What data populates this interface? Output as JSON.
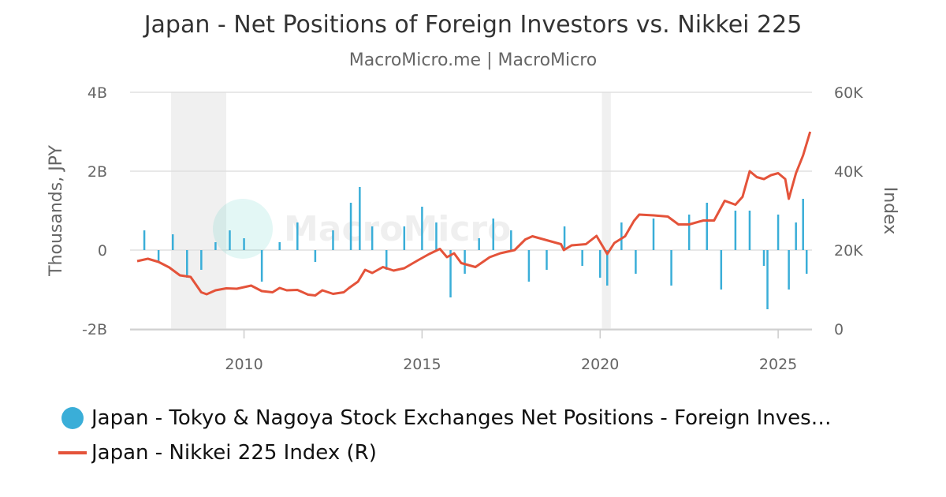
{
  "chart_data": {
    "type": "bar+line",
    "title": "Japan - Net Positions of Foreign Investors vs. Nikkei 225",
    "subtitle": "MacroMicro.me | MacroMicro",
    "watermark": "MacroMicro",
    "x_ticks": [
      "2010",
      "2015",
      "2020",
      "2025"
    ],
    "x_tick_values": [
      2010,
      2015,
      2020,
      2025
    ],
    "xlim": [
      2006.8,
      2025.95
    ],
    "y_left": {
      "label": "Thousands, JPY",
      "ticks": [
        "4B",
        "2B",
        "0",
        "-2B"
      ],
      "tick_values": [
        4000000000,
        2000000000,
        0,
        -2000000000
      ],
      "range": [
        -2000000000,
        4000000000
      ]
    },
    "y_right": {
      "label": "Index",
      "ticks": [
        "60K",
        "40K",
        "20K",
        "0"
      ],
      "tick_values": [
        60000,
        40000,
        20000,
        0
      ],
      "range": [
        0,
        60000
      ]
    },
    "recessions": [
      [
        2007.95,
        2009.5
      ],
      [
        2020.05,
        2020.3
      ]
    ],
    "series": [
      {
        "name": "Japan - Tokyo & Nagoya Stock Exchanges Net Positions - Foreign Investors",
        "legend_label": "Japan - Tokyo & Nagoya Stock Exchanges Net Positions - Foreign Inves…",
        "type": "bar",
        "axis": "left",
        "color": "#3aaed8",
        "note": "weekly bars; values in JPY",
        "x": [
          2007.2,
          2007.6,
          2008.0,
          2008.4,
          2008.8,
          2009.2,
          2009.6,
          2010.0,
          2010.5,
          2011.0,
          2011.5,
          2012.0,
          2012.5,
          2013.0,
          2013.25,
          2013.6,
          2014.0,
          2014.5,
          2015.0,
          2015.4,
          2015.8,
          2016.2,
          2016.6,
          2017.0,
          2017.5,
          2018.0,
          2018.5,
          2019.0,
          2019.5,
          2020.0,
          2020.2,
          2020.6,
          2021.0,
          2021.5,
          2022.0,
          2022.5,
          2023.0,
          2023.4,
          2023.8,
          2024.2,
          2024.6,
          2024.7,
          2025.0,
          2025.3,
          2025.5,
          2025.7,
          2025.8
        ],
        "values": [
          500000000,
          -300000000,
          400000000,
          -700000000,
          -500000000,
          200000000,
          500000000,
          300000000,
          -800000000,
          200000000,
          700000000,
          -300000000,
          500000000,
          1200000000,
          1600000000,
          600000000,
          -500000000,
          600000000,
          1100000000,
          700000000,
          -1200000000,
          -600000000,
          300000000,
          800000000,
          500000000,
          -800000000,
          -500000000,
          600000000,
          -400000000,
          -700000000,
          -900000000,
          700000000,
          -600000000,
          800000000,
          -900000000,
          900000000,
          1200000000,
          -1000000000,
          1000000000,
          1000000000,
          -400000000,
          -1500000000,
          900000000,
          -1000000000,
          700000000,
          1300000000,
          -600000000
        ]
      },
      {
        "name": "Japan - Nikkei 225 Index (R)",
        "type": "line",
        "axis": "right",
        "color": "#e4533a",
        "x": [
          2007.0,
          2007.3,
          2007.6,
          2007.9,
          2008.2,
          2008.5,
          2008.8,
          2008.95,
          2009.2,
          2009.5,
          2009.8,
          2010.2,
          2010.5,
          2010.8,
          2011.0,
          2011.2,
          2011.5,
          2011.8,
          2012.0,
          2012.2,
          2012.5,
          2012.8,
          2012.95,
          2013.2,
          2013.4,
          2013.6,
          2013.9,
          2014.2,
          2014.5,
          2014.9,
          2015.2,
          2015.5,
          2015.7,
          2015.9,
          2016.1,
          2016.5,
          2016.9,
          2017.2,
          2017.6,
          2017.9,
          2018.1,
          2018.5,
          2018.9,
          2018.98,
          2019.2,
          2019.6,
          2019.9,
          2020.2,
          2020.4,
          2020.7,
          2020.95,
          2021.1,
          2021.5,
          2021.9,
          2022.2,
          2022.5,
          2022.9,
          2023.2,
          2023.5,
          2023.8,
          2024.0,
          2024.2,
          2024.4,
          2024.6,
          2024.8,
          2025.0,
          2025.2,
          2025.3,
          2025.5,
          2025.7,
          2025.9
        ],
        "values": [
          17200,
          17800,
          17000,
          15600,
          13600,
          13200,
          9300,
          8800,
          9800,
          10300,
          10200,
          11000,
          9600,
          9300,
          10400,
          9800,
          9900,
          8700,
          8500,
          9800,
          8900,
          9300,
          10400,
          12000,
          15000,
          14200,
          15700,
          14800,
          15400,
          17500,
          19000,
          20300,
          18200,
          19200,
          16700,
          15700,
          18200,
          19200,
          20000,
          22700,
          23500,
          22500,
          21500,
          20000,
          21200,
          21500,
          23600,
          19000,
          21800,
          23500,
          27400,
          29000,
          28800,
          28500,
          26500,
          26500,
          27500,
          27500,
          32500,
          31500,
          33500,
          40000,
          38500,
          38000,
          39000,
          39500,
          38000,
          33000,
          39500,
          44000,
          50000
        ]
      }
    ]
  }
}
